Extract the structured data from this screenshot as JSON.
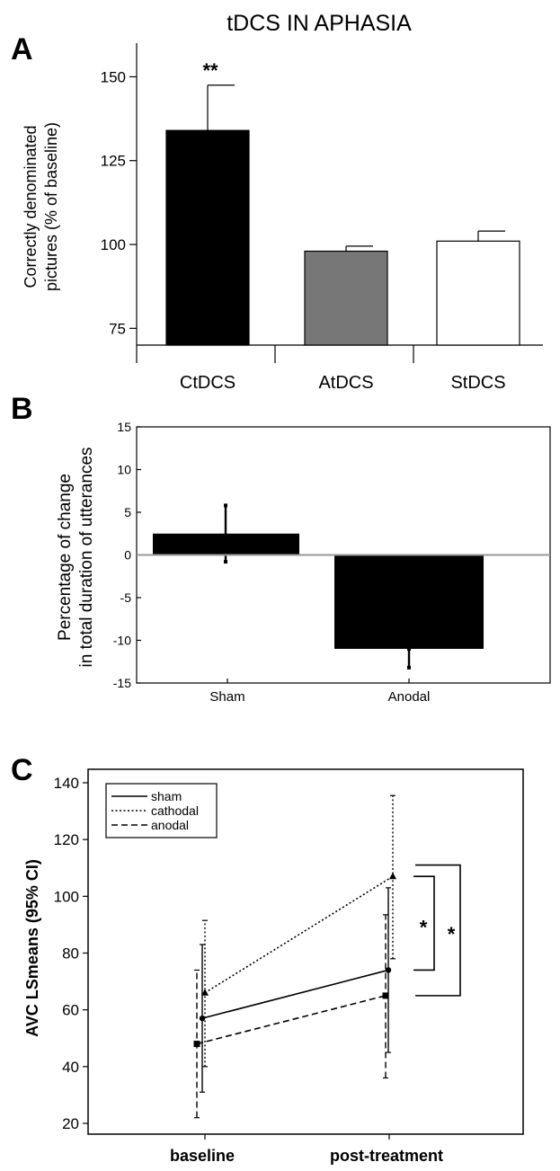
{
  "figure": {
    "title": "tDCS IN APHASIA"
  },
  "chart_data": [
    {
      "panel": "A",
      "type": "bar",
      "title": "",
      "ylabel_lines": [
        "Correctly denominated",
        "pictures (% of baseline)"
      ],
      "xlabel": "",
      "categories": [
        "CtDCS",
        "AtDCS",
        "StDCS"
      ],
      "values": [
        134,
        98,
        101
      ],
      "errors": [
        13.5,
        1.5,
        3
      ],
      "colors": [
        "#000000",
        "#777777",
        "#ffffff"
      ],
      "annotations": [
        {
          "category": "CtDCS",
          "text": "**"
        }
      ],
      "ylim": [
        70,
        160
      ],
      "yticks": [
        75,
        100,
        125,
        150
      ],
      "grid": false
    },
    {
      "panel": "B",
      "type": "bar",
      "title": "",
      "ylabel_lines": [
        "Percentage of change",
        "in total duration of utterances"
      ],
      "xlabel": "",
      "categories": [
        "Sham",
        "Anodal"
      ],
      "values": [
        2.5,
        -11
      ],
      "error_top": [
        5.8,
        -11
      ],
      "error_bottom": [
        -0.8,
        -13.2
      ],
      "colors": [
        "#000000",
        "#000000"
      ],
      "ylim": [
        -15,
        15
      ],
      "yticks": [
        -15,
        -10,
        -5,
        0,
        5,
        10,
        15
      ],
      "grid": false
    },
    {
      "panel": "C",
      "type": "line",
      "title": "",
      "ylabel": "AVC LSmeans (95% CI)",
      "xlabel": "",
      "categories": [
        "baseline",
        "post-treatment"
      ],
      "series": [
        {
          "name": "sham",
          "values": [
            57,
            74
          ],
          "ci_low": [
            31,
            45
          ],
          "ci_high": [
            83,
            103
          ],
          "style": "solid",
          "marker": "circle"
        },
        {
          "name": "cathodal",
          "values": [
            66,
            107
          ],
          "ci_low": [
            40,
            78
          ],
          "ci_high": [
            91.5,
            135.5
          ],
          "style": "dotted",
          "marker": "triangle"
        },
        {
          "name": "anodal",
          "values": [
            48,
            65
          ],
          "ci_low": [
            22,
            36
          ],
          "ci_high": [
            74,
            93.5
          ],
          "style": "dashed",
          "marker": "square"
        }
      ],
      "significance": [
        {
          "from": 107,
          "to": 74,
          "label": "*"
        },
        {
          "from": 111,
          "to": 65,
          "label": "*"
        }
      ],
      "ylim": [
        15,
        145
      ],
      "yticks": [
        20,
        40,
        60,
        80,
        100,
        120,
        140
      ],
      "legend_position": "top-left",
      "grid": false
    }
  ]
}
